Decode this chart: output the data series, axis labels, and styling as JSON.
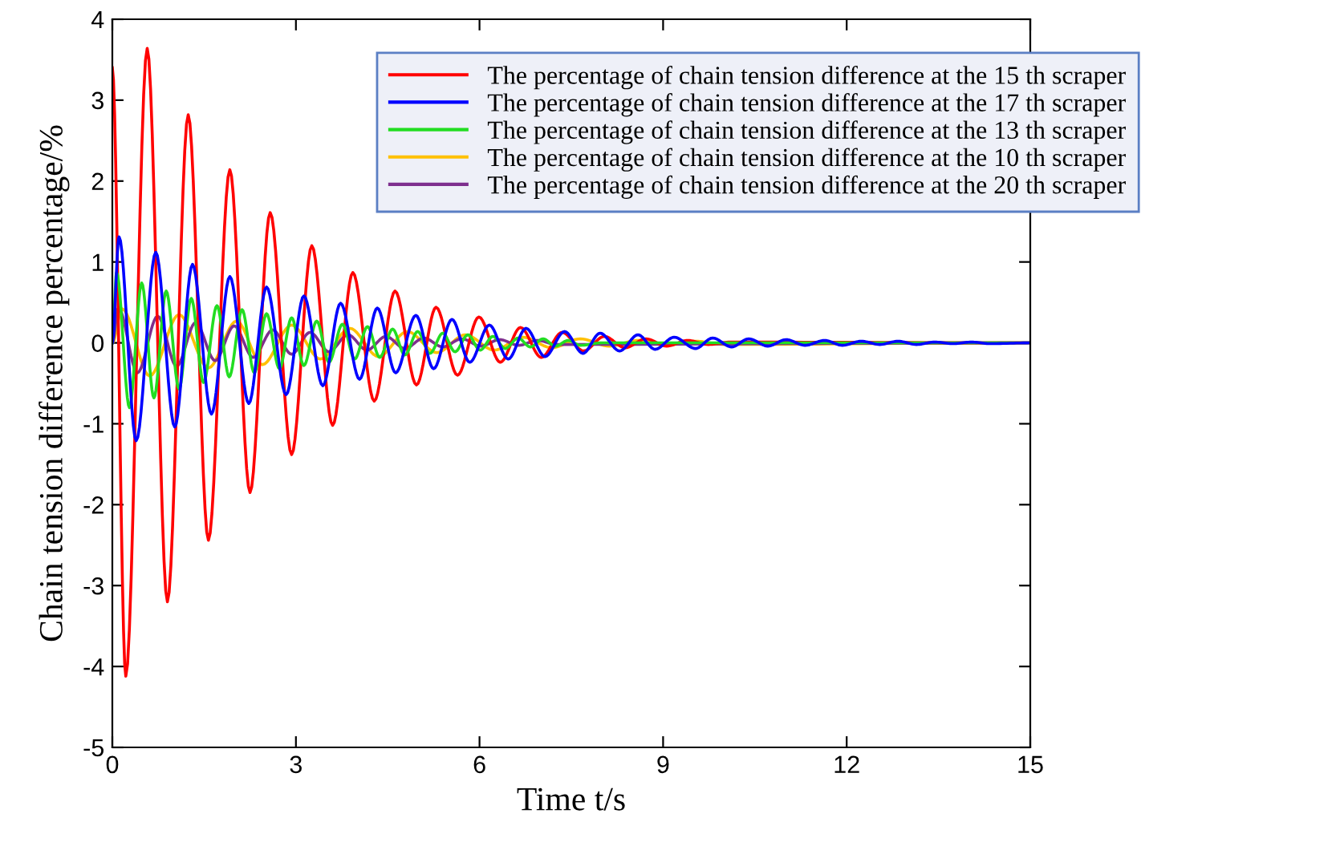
{
  "chart_data": {
    "type": "line",
    "xlabel": "Time t/s",
    "ylabel": "Chain tension difference percentage/%",
    "xlim": [
      0,
      15
    ],
    "xticks": [
      0,
      3,
      6,
      9,
      12,
      15
    ],
    "ylim": [
      -5,
      4
    ],
    "yticks": [
      -5,
      -4,
      -3,
      -2,
      -1,
      0,
      1,
      2,
      3,
      4
    ],
    "legend": "top right",
    "grid": false,
    "marker": "none",
    "line_style": "solid",
    "series": [
      {
        "name": "The percentage of chain tension difference at the 15 th scraper",
        "color": "#ff0000",
        "x": [
          0,
          0.22,
          0.57,
          0.9,
          1.24,
          1.57,
          1.92,
          2.25,
          2.58,
          2.93,
          3.26,
          3.6,
          3.93,
          4.28,
          4.62,
          4.97,
          5.29,
          5.64,
          5.99,
          6.34,
          6.67,
          7.01,
          7.35,
          7.7,
          8.04,
          8.38,
          8.72,
          9.06,
          9.4,
          9.74,
          10.1,
          15
        ],
        "values": [
          3.4,
          -4.12,
          3.64,
          -3.2,
          2.82,
          -2.44,
          2.14,
          -1.85,
          1.61,
          -1.38,
          1.2,
          -1.02,
          0.87,
          -0.72,
          0.64,
          -0.52,
          0.44,
          -0.4,
          0.32,
          -0.24,
          0.19,
          -0.18,
          0.13,
          -0.1,
          0.08,
          -0.06,
          0.05,
          -0.04,
          0.03,
          -0.02,
          0.01,
          0
        ]
      },
      {
        "name": "The percentage of chain tension difference at the 17 th scraper",
        "color": "#0000ff",
        "x": [
          0,
          0.11,
          0.39,
          0.71,
          1.02,
          1.31,
          1.62,
          1.92,
          2.23,
          2.52,
          2.84,
          3.13,
          3.44,
          3.73,
          4.04,
          4.33,
          4.63,
          4.96,
          5.25,
          5.55,
          5.84,
          6.16,
          6.47,
          6.76,
          7.07,
          7.39,
          7.69,
          7.97,
          8.29,
          8.59,
          8.87,
          9.18,
          9.53,
          9.81,
          10.12,
          10.4,
          10.71,
          11.01,
          11.32,
          11.64,
          11.93,
          12.24,
          12.54,
          12.84,
          13.14,
          13.44,
          13.74,
          14.04,
          14.34,
          15
        ],
        "values": [
          0,
          1.31,
          -1.21,
          1.12,
          -1.04,
          0.97,
          -0.88,
          0.82,
          -0.75,
          0.69,
          -0.64,
          0.58,
          -0.53,
          0.49,
          -0.45,
          0.43,
          -0.37,
          0.34,
          -0.32,
          0.29,
          -0.24,
          0.22,
          -0.2,
          0.18,
          -0.17,
          0.14,
          -0.13,
          0.12,
          -0.1,
          0.1,
          -0.08,
          0.07,
          -0.07,
          0.06,
          -0.05,
          0.05,
          -0.04,
          0.04,
          -0.03,
          0.03,
          -0.03,
          0.02,
          -0.02,
          0.02,
          -0.02,
          0.01,
          -0.01,
          0.01,
          -0.01,
          0
        ]
      },
      {
        "name": "The percentage of chain tension difference at the 13 th scraper",
        "color": "#22dd22",
        "x": [
          0,
          0.07,
          0.28,
          0.48,
          0.68,
          0.88,
          1.09,
          1.29,
          1.49,
          1.71,
          1.91,
          2.12,
          2.32,
          2.52,
          2.73,
          2.93,
          3.13,
          3.34,
          3.54,
          3.76,
          3.96,
          4.17,
          4.37,
          4.58,
          4.78,
          4.99,
          5.19,
          5.4,
          5.6,
          5.81,
          6.01,
          6.22,
          6.42,
          6.63,
          6.83,
          7.04,
          7.24,
          7.45,
          7.65,
          8,
          15
        ],
        "values": [
          0,
          0.87,
          -0.8,
          0.74,
          -0.68,
          0.64,
          -0.57,
          0.55,
          -0.49,
          0.46,
          -0.42,
          0.41,
          -0.37,
          0.36,
          -0.32,
          0.31,
          -0.28,
          0.27,
          -0.24,
          0.23,
          -0.2,
          0.2,
          -0.18,
          0.17,
          -0.15,
          0.14,
          -0.13,
          0.12,
          -0.11,
          0.1,
          -0.09,
          0.08,
          -0.07,
          0.06,
          -0.05,
          0.05,
          -0.04,
          0.03,
          -0.03,
          0,
          0
        ]
      },
      {
        "name": "The percentage of chain tension difference at the 10 th scraper",
        "color": "#ffc000",
        "x": [
          0,
          0.16,
          0.61,
          1.09,
          1.57,
          2.03,
          2.45,
          2.93,
          3.4,
          3.88,
          4.35,
          4.82,
          5.3,
          5.77,
          6.24,
          6.71,
          7.18,
          7.65,
          8.12,
          8.59,
          9.06,
          9.53,
          10,
          15
        ],
        "values": [
          0,
          0.42,
          -0.41,
          0.35,
          -0.31,
          0.27,
          -0.27,
          0.22,
          -0.2,
          0.18,
          -0.17,
          0.14,
          -0.12,
          0.1,
          -0.09,
          0.07,
          -0.06,
          0.05,
          -0.04,
          0.03,
          -0.03,
          0.02,
          -0.02,
          0
        ]
      },
      {
        "name": "The percentage of chain tension difference at the 20 th scraper",
        "color": "#7e2f8e",
        "x": [
          0,
          0.1,
          0.41,
          0.74,
          1.05,
          1.36,
          1.68,
          1.99,
          2.3,
          2.62,
          2.93,
          3.23,
          3.54,
          3.85,
          4.16,
          4.47,
          4.78,
          5.09,
          5.4,
          5.71,
          6.02,
          6.33,
          6.64,
          6.95,
          7.26,
          15
        ],
        "values": [
          0,
          0.43,
          -0.37,
          0.33,
          -0.29,
          0.25,
          -0.22,
          0.21,
          -0.18,
          0.16,
          -0.14,
          0.13,
          -0.11,
          0.1,
          -0.09,
          0.08,
          -0.07,
          0.06,
          -0.05,
          0.05,
          -0.04,
          0.04,
          -0.03,
          0.03,
          -0.02,
          0
        ]
      }
    ]
  }
}
